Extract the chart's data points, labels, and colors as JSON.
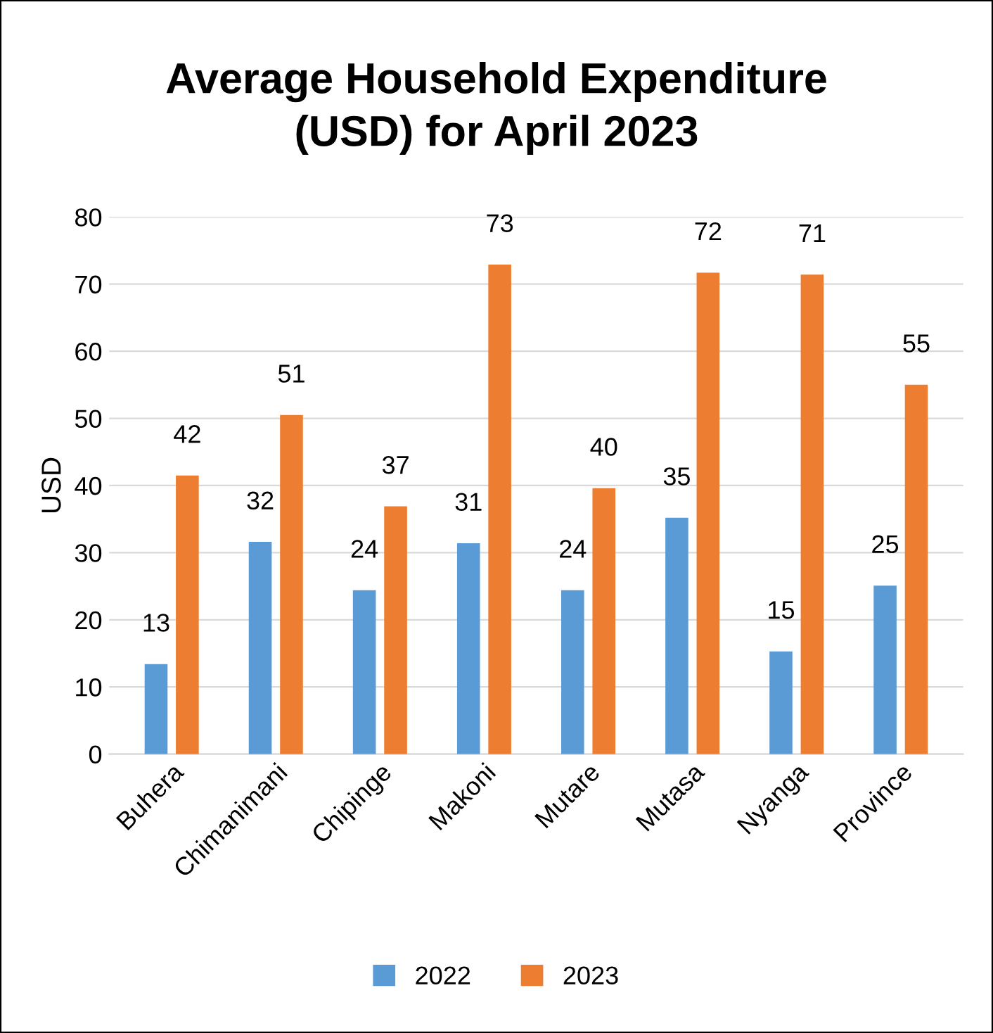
{
  "chart_data": {
    "type": "bar",
    "title": "Average Household Expenditure\n(USD) for April 2023",
    "ylabel": "USD",
    "categories": [
      "Buhera",
      "Chimanimani",
      "Chipinge",
      "Makoni",
      "Mutare",
      "Mutasa",
      "Nyanga",
      "Province"
    ],
    "series": [
      {
        "name": "2022",
        "color": "#5b9bd5",
        "values": [
          13.4,
          31.6,
          24.4,
          31.4,
          24.4,
          35.2,
          15.3,
          25.1
        ],
        "value_labels": [
          "13",
          "32",
          "24",
          "31",
          "24",
          "35",
          "15",
          "25"
        ]
      },
      {
        "name": "2023",
        "color": "#ed7d31",
        "values": [
          41.5,
          50.5,
          36.9,
          72.9,
          39.6,
          71.7,
          71.4,
          55.0
        ],
        "value_labels": [
          "42",
          "51",
          "37",
          "73",
          "40",
          "72",
          "71",
          "55"
        ]
      }
    ],
    "ylim": [
      0,
      80
    ],
    "yticks": [
      0,
      10,
      20,
      30,
      40,
      50,
      60,
      70,
      80
    ],
    "grid": "y",
    "legend": "bottom"
  }
}
